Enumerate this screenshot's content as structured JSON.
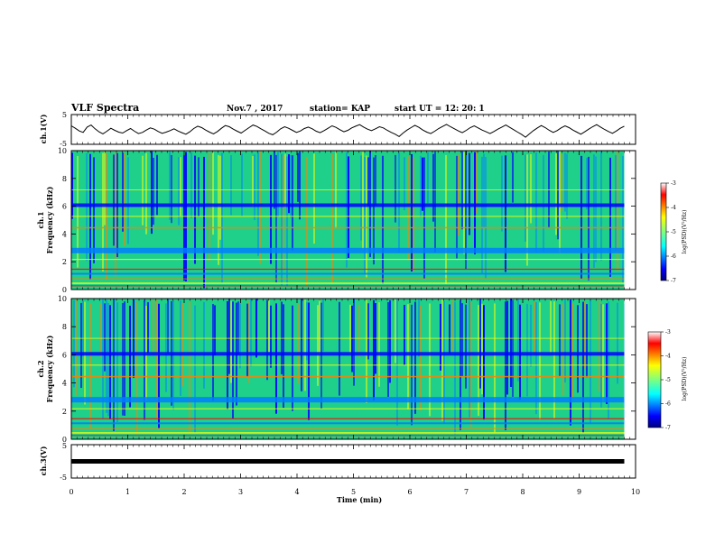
{
  "header": {
    "title": "VLF Spectra",
    "date": "Nov.7 , 2017",
    "station": "station= KAP",
    "start": "start UT = 12: 20: 1"
  },
  "chart_data": [
    {
      "type": "line",
      "ylabel": "ch.1(V)",
      "ylim": [
        -5,
        5
      ],
      "yticks": [
        "5",
        "-5"
      ],
      "trace_description_series": [
        {
          "values": [
            1.2,
            0.4,
            -0.5,
            -1.0,
            0.8,
            1.5,
            0.2,
            -0.8,
            -1.5,
            -0.6,
            0.4,
            -0.3,
            -0.9,
            -1.2,
            -0.4,
            0.3,
            -0.6,
            -1.4,
            -1.0,
            -0.2,
            0.5,
            0.1,
            -0.7,
            -1.3,
            -0.9,
            -0.4,
            0.2,
            -0.5,
            -1.1,
            -1.6,
            -0.8,
            0.3,
            1.1,
            0.6,
            -0.2,
            -0.9,
            -1.5,
            -0.7,
            0.4,
            1.3,
            0.9,
            0.1,
            -0.6,
            -1.2,
            -0.3,
            0.6,
            1.5,
            1.0,
            0.2,
            -0.5,
            -1.3,
            -1.8,
            -0.9,
            0.2,
            0.9,
            0.4,
            -0.3,
            -1.0,
            -0.5,
            0.3,
            0.8,
            0.2,
            -0.6,
            -1.1,
            -0.4,
            0.4,
            1.2,
            0.7,
            -0.1,
            -0.8,
            -0.3,
            0.5,
            1.1,
            1.6,
            0.8,
            0.1,
            -0.4,
            0.2,
            0.9,
            0.5,
            -0.3,
            -1.0,
            -1.6,
            -2.4,
            -1.2,
            -0.2,
            0.6,
            1.4,
            0.7,
            -0.2,
            -0.9,
            -1.4,
            -0.6,
            0.3,
            1.0,
            1.7,
            0.9,
            0.2,
            -0.5,
            -1.1,
            -0.3,
            0.6,
            1.2,
            0.5,
            -0.2,
            -0.8,
            -1.4,
            -0.7,
            0.1,
            0.8,
            1.5,
            0.7,
            -0.1,
            -0.9,
            -1.7,
            -2.6,
            -1.5,
            -0.4,
            0.5,
            1.3,
            0.6,
            -0.3,
            -1.0,
            -0.4,
            0.5,
            1.2,
            0.6,
            -0.2,
            -0.9,
            -1.6,
            -0.8,
            0.1,
            0.9,
            1.6,
            0.8,
            0.0,
            -0.7,
            -1.3,
            -0.5,
            0.4,
            1.1
          ],
          "stroke": "#000000"
        }
      ]
    },
    {
      "type": "heatmap",
      "channel": "ch.1",
      "ylabel": "ch.1\nFrequency (kHz)",
      "ylim": [
        0,
        10
      ],
      "yticks": [
        "0",
        "2",
        "4",
        "6",
        "8",
        "10"
      ],
      "colorbar": {
        "label": "log(PSD)(V²/Hz)",
        "range": [
          -7,
          -3
        ],
        "ticks": [
          "-3",
          "-4",
          "-5",
          "-6",
          "-7"
        ]
      }
    },
    {
      "type": "heatmap",
      "channel": "ch.2",
      "ylabel": "ch.2\nFrequency (kHz)",
      "ylim": [
        0,
        10
      ],
      "yticks": [
        "0",
        "2",
        "4",
        "6",
        "8",
        "10"
      ],
      "colorbar": {
        "label": "log(PSD)(V²/Hz)",
        "range": [
          -7,
          -3
        ],
        "ticks": [
          "-3",
          "-4",
          "-5",
          "-6",
          "-7"
        ]
      }
    },
    {
      "type": "line",
      "ylabel": "ch.3(V)",
      "ylim": [
        -5,
        5
      ],
      "yticks": [
        "5",
        "-5"
      ],
      "trace_description_series": [
        {
          "values": [
            0,
            0,
            0,
            0,
            0,
            0,
            0,
            0,
            0,
            0
          ],
          "stroke": "#000000"
        }
      ]
    }
  ],
  "xaxis": {
    "label": "Time (min)",
    "xlim": [
      0,
      10
    ],
    "ticks": [
      "0",
      "1",
      "2",
      "3",
      "4",
      "5",
      "6",
      "7",
      "8",
      "9",
      "10"
    ],
    "data_end": 9.8
  },
  "colors": {
    "jet": [
      "#00007f",
      "#0000ff",
      "#007fff",
      "#00ffff",
      "#7fff7f",
      "#ffff00",
      "#ff7f00",
      "#ff0000",
      "#7f0000"
    ]
  }
}
